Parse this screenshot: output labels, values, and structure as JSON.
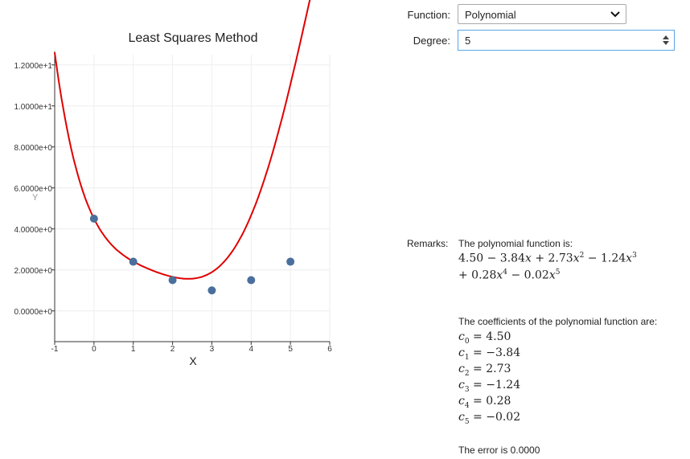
{
  "chart_data": {
    "type": "scatter",
    "title": "Least Squares Method",
    "xlabel": "X",
    "ylabel": "Y",
    "xlim": [
      -1,
      6
    ],
    "ylim": [
      -1.5,
      12.5
    ],
    "x_ticks": [
      "-1",
      "0",
      "1",
      "2",
      "3",
      "4",
      "5",
      "6"
    ],
    "y_ticks": [
      "0.0000e+0",
      "2.0000e+0",
      "4.0000e+0",
      "6.0000e+0",
      "8.0000e+0",
      "1.0000e+1",
      "1.2000e+1"
    ],
    "points": [
      [
        0,
        4.5
      ],
      [
        1,
        2.4
      ],
      [
        2,
        1.5
      ],
      [
        3,
        1.0
      ],
      [
        4,
        1.5
      ],
      [
        5,
        2.4
      ]
    ],
    "fit": {
      "coefficients": [
        4.5,
        -3.84,
        2.73,
        -1.24,
        0.28,
        -0.02
      ],
      "color": "#e00000"
    },
    "point_color": "#4a6f9c"
  },
  "controls": {
    "function_label": "Function:",
    "function_value": "Polynomial",
    "degree_label": "Degree:",
    "degree_value": "5"
  },
  "remarks": {
    "label": "Remarks:",
    "intro": "The polynomial function is:",
    "coef_intro": "The coefficients of the polynomial function are:",
    "coefficients": [
      "4.50",
      "−3.84",
      "2.73",
      "−1.24",
      "0.28",
      "−0.02"
    ],
    "error": "The error is 0.0000"
  }
}
